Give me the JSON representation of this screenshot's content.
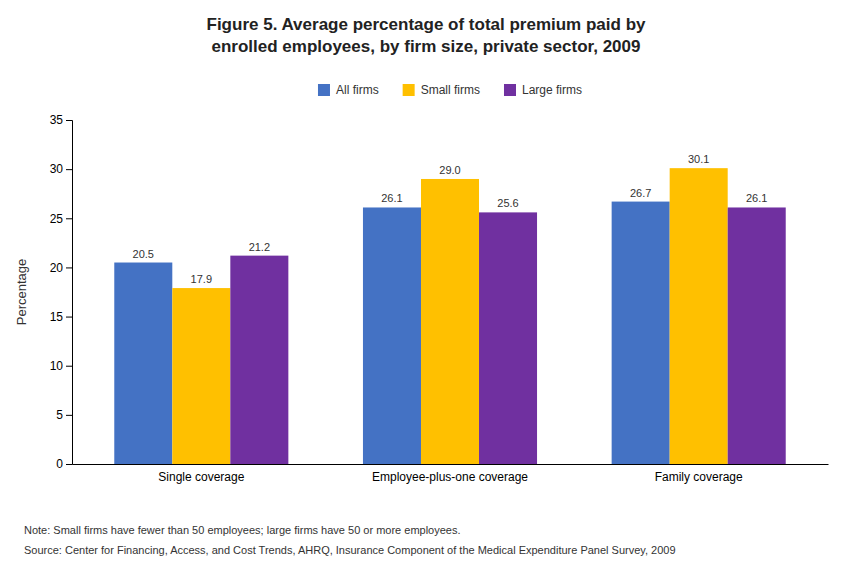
{
  "chart_data": {
    "type": "bar",
    "title": "Figure 5. Average percentage of total premium paid by\nenrolled employees, by firm size, private sector, 2009",
    "y_label": "Percentage",
    "categories": [
      "Single coverage",
      "Employee-plus-one coverage",
      "Family coverage"
    ],
    "series": [
      {
        "name": "All firms",
        "color": "#4472C4",
        "values": [
          20.5,
          26.1,
          26.7
        ]
      },
      {
        "name": "Small firms",
        "color": "#FFC000",
        "values": [
          17.9,
          29.0,
          30.1
        ],
        "value_labels": [
          "17.9",
          "29.0",
          "30.1"
        ]
      },
      {
        "name": "Large firms",
        "color": "#7030A0",
        "values": [
          21.2,
          25.6,
          26.1
        ]
      }
    ],
    "ylim": [
      0,
      35
    ],
    "yticks": [
      0,
      5,
      10,
      15,
      20,
      25,
      30,
      35
    ],
    "grid": false,
    "legend": "top",
    "data_labels": true,
    "annotations": [
      "Note: Small firms have fewer than 50 employees; large firms have 50 or more employees.",
      "Source: Center for Financing, Access, and Cost Trends, AHRQ, Insurance Component of the Medical Expenditure Panel Survey, 2009"
    ]
  }
}
